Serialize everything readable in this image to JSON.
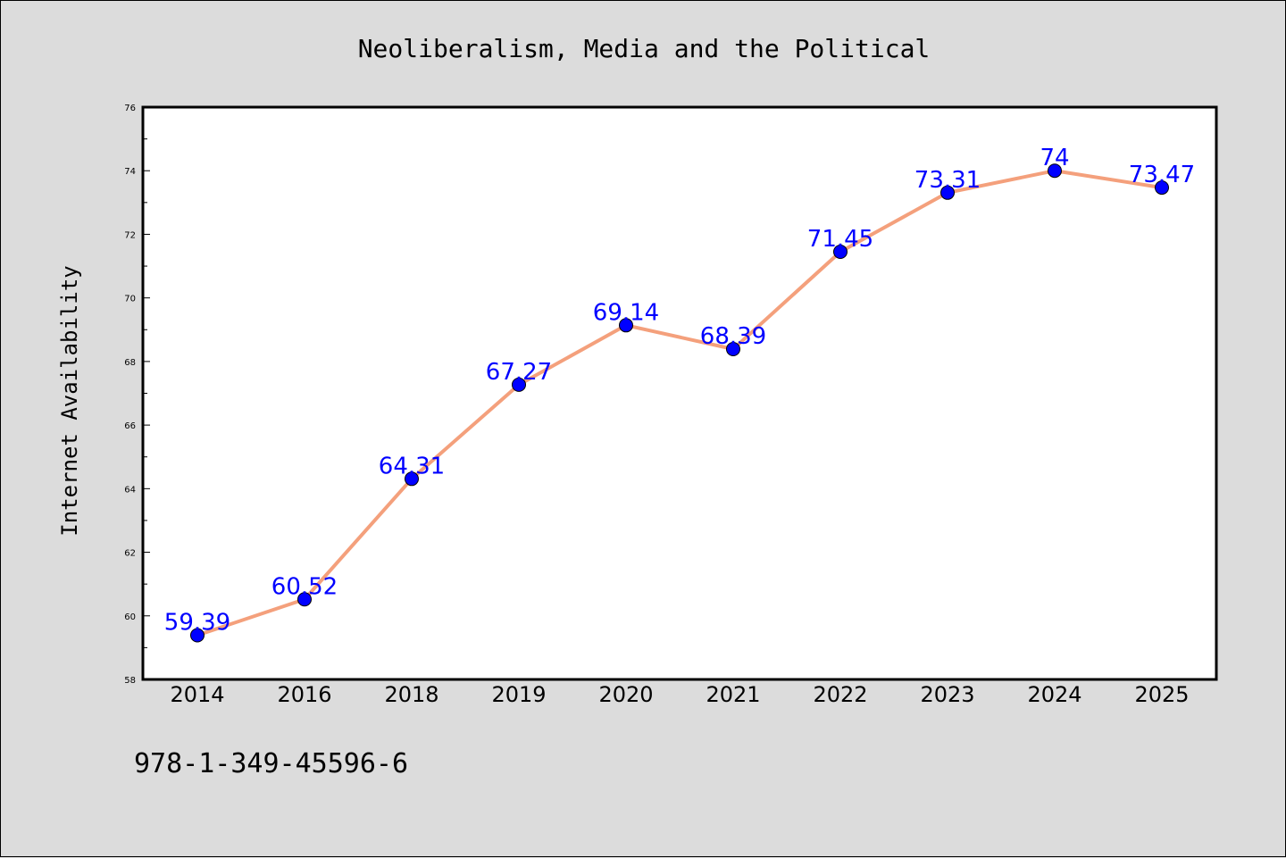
{
  "chart_data": {
    "type": "line",
    "title": "Neoliberalism, Media and the Political",
    "xlabel": "",
    "ylabel": "Internet Availability",
    "categories": [
      "2014",
      "2016",
      "2018",
      "2019",
      "2020",
      "2021",
      "2022",
      "2023",
      "2024",
      "2025"
    ],
    "series": [
      {
        "values": [
          59.39,
          60.52,
          64.31,
          67.27,
          69.14,
          68.39,
          71.45,
          73.31,
          74,
          73.47
        ],
        "labels": [
          "59.39",
          "60.52",
          "64.31",
          "67.27",
          "69.14",
          "68.39",
          "71.45",
          "73.31",
          "74",
          "73.47"
        ]
      }
    ],
    "ylim": [
      58,
      76
    ],
    "yticks": [
      "58",
      "60",
      "62",
      "64",
      "66",
      "68",
      "70",
      "72",
      "74",
      "76"
    ],
    "grid": false,
    "legend": "none",
    "colors": {
      "line": "#f4a07c",
      "marker": "#0000ff",
      "data_label": "#0000ff",
      "background": "#dcdcdc",
      "plot_background": "#ffffff"
    }
  },
  "footer": {
    "isbn": "978-1-349-45596-6"
  }
}
